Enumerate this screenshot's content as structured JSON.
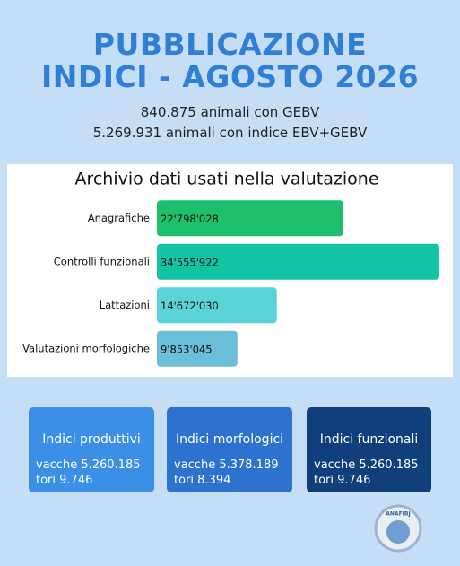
{
  "header": {
    "title": [
      "PUBBLICAZIONE",
      "INDICI - AGOSTO 2026"
    ],
    "subtitle": [
      "840.875 animali con GEBV",
      "5.269.931 animali con indice EBV+GEBV"
    ]
  },
  "chart_data": {
    "type": "bar",
    "orientation": "horizontal",
    "title": "Archivio dati usati nella valutazione",
    "categories": [
      "Anagrafiche",
      "Controlli funzionali",
      "Lattazioni",
      "Valutazioni morfologiche"
    ],
    "values": [
      22798028,
      34555922,
      14672030,
      9853045
    ],
    "value_labels": [
      "22'798'028",
      "34'555'922",
      "14'672'030",
      "9'853'045"
    ],
    "colors": [
      "#1dbf6a",
      "#13c3a5",
      "#59d3d7",
      "#6bbfd8"
    ],
    "xlim": [
      0,
      35000000
    ]
  },
  "cards": [
    {
      "title": "Indici produttivi",
      "lines": [
        "vacche 5.260.185",
        "tori 9.746"
      ],
      "color": "#3b8fe7"
    },
    {
      "title": "Indici morfologici",
      "lines": [
        "vacche 5.378.189",
        "tori 8.394"
      ],
      "color": "#2d72cf"
    },
    {
      "title": "Indici funzionali",
      "lines": [
        "vacche 5.260.185",
        "tori 9.746"
      ],
      "color": "#103f7b"
    }
  ],
  "logo": {
    "text": "ANAFIBJ"
  }
}
